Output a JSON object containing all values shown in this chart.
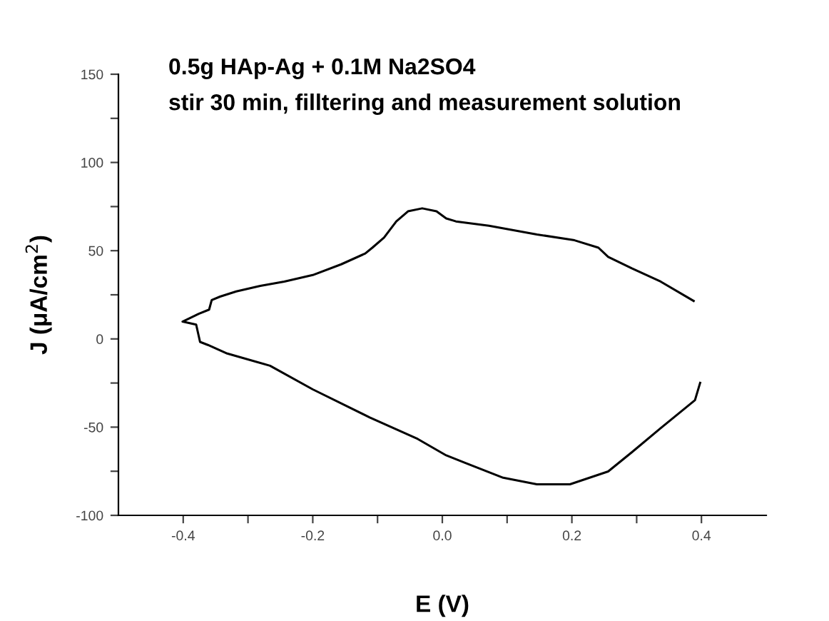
{
  "chart_data": {
    "type": "line",
    "title": "0.5g HAp-Ag + 0.1M Na2SO4",
    "subtitle": "stir 30 min, filltering and measurement solution",
    "xlabel": "E (V)",
    "ylabel": "J (μA/cm$^{2}$)",
    "series": [
      {
        "color": "#000000",
        "x": [
          0.388,
          0.337,
          0.293,
          0.256,
          0.241,
          0.204,
          0.146,
          0.072,
          0.021,
          0.006,
          -0.009,
          -0.031,
          -0.053,
          -0.071,
          -0.09,
          -0.108,
          -0.119,
          -0.156,
          -0.2,
          -0.244,
          -0.281,
          -0.318,
          -0.343,
          -0.356,
          -0.36,
          -0.376,
          -0.401,
          -0.38,
          -0.374,
          -0.362,
          -0.332,
          -0.266,
          -0.2,
          -0.112,
          -0.038,
          0.006,
          0.035,
          0.094,
          0.146,
          0.197,
          0.256,
          0.293,
          0.337,
          0.39,
          0.398
        ],
        "values": [
          21.5,
          32.5,
          39.9,
          46.5,
          51.7,
          55.9,
          59.2,
          64.1,
          66.6,
          68.3,
          72.3,
          74.0,
          72.3,
          66.6,
          57.4,
          51.7,
          48.4,
          42.3,
          36.2,
          32.5,
          30.1,
          26.9,
          24.0,
          22.0,
          16.6,
          14.2,
          9.8,
          8.1,
          -1.7,
          -3.4,
          -8.3,
          -15.2,
          -28.6,
          -44.5,
          -56.7,
          -66.0,
          -70.2,
          -78.7,
          -82.4,
          -82.4,
          -75.1,
          -64.1,
          -50.6,
          -34.7,
          -24.9
        ]
      }
    ],
    "xlim": [
      -0.5,
      0.5
    ],
    "ylim": [
      -100,
      150
    ],
    "xticks": [
      {
        "value": -0.4,
        "label": "-0.4"
      },
      {
        "value": -0.3,
        "label": null
      },
      {
        "value": -0.2,
        "label": "-0.2"
      },
      {
        "value": -0.1,
        "label": null
      },
      {
        "value": 0.0,
        "label": "0.0"
      },
      {
        "value": 0.1,
        "label": null
      },
      {
        "value": 0.2,
        "label": "0.2"
      },
      {
        "value": 0.3,
        "label": null
      },
      {
        "value": 0.4,
        "label": "0.4"
      }
    ],
    "yticks": [
      -100,
      {
        "value": -75,
        "label": null
      },
      -50,
      {
        "value": -25,
        "label": null
      },
      0,
      {
        "value": 25,
        "label": null
      },
      50,
      {
        "value": 75,
        "label": null
      },
      100,
      {
        "value": 125,
        "label": null
      },
      150
    ],
    "grid": false,
    "legend": false,
    "line_style": "solid",
    "marker": "none"
  }
}
